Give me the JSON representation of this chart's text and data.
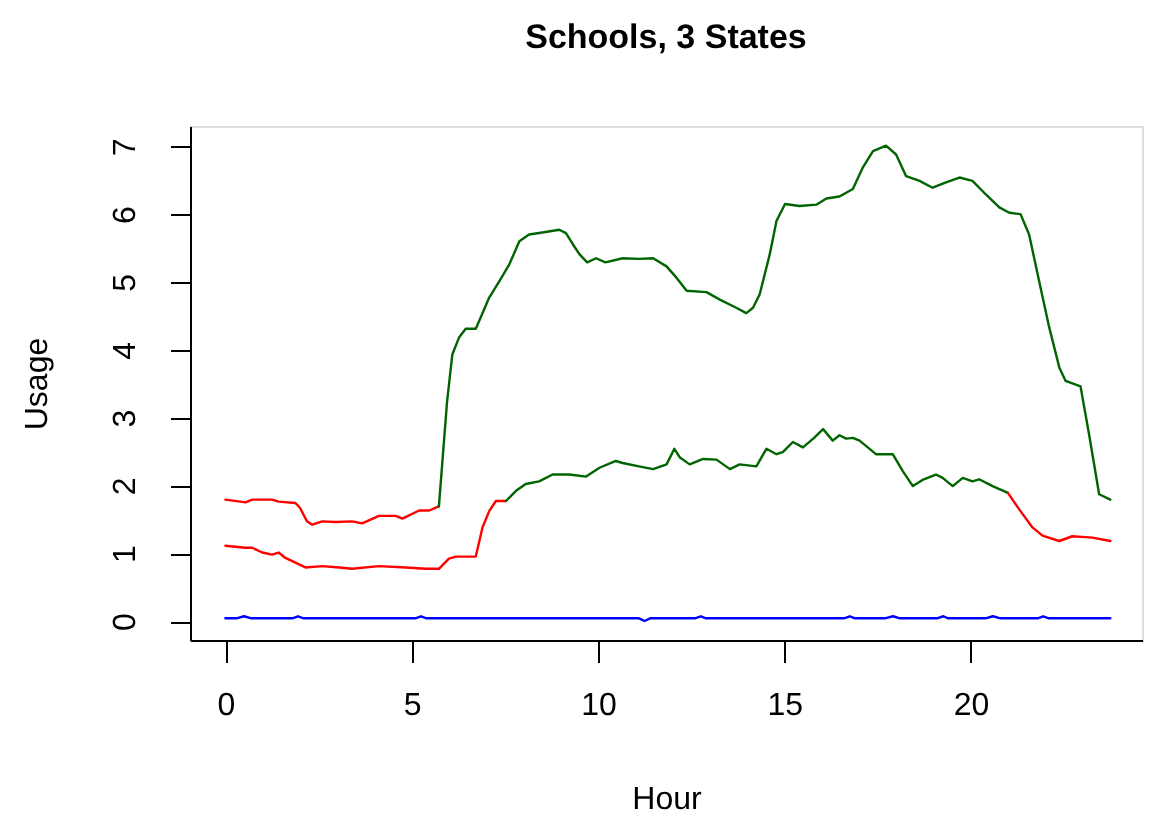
{
  "chart_data": {
    "type": "line",
    "title": "Schools, 3 States",
    "xlabel": "Hour",
    "ylabel": "Usage",
    "xlim": [
      -0.95,
      24.6
    ],
    "ylim": [
      -0.28,
      7.3
    ],
    "xticks": [
      0,
      5,
      10,
      15,
      20
    ],
    "yticks": [
      0,
      1,
      2,
      3,
      4,
      5,
      6,
      7
    ],
    "grid": false,
    "series": [
      {
        "color": "#ff0000",
        "x": [
          0,
          0.54,
          0.72,
          1.25,
          1.43,
          1.88,
          2.0,
          2.19,
          2.33,
          2.6,
          2.96,
          3.4,
          3.67,
          4.12,
          4.57,
          4.75,
          5.2,
          5.47,
          5.73
        ],
        "values": [
          1.79,
          1.75,
          1.79,
          1.79,
          1.76,
          1.74,
          1.67,
          1.47,
          1.42,
          1.47,
          1.46,
          1.47,
          1.44,
          1.55,
          1.55,
          1.51,
          1.63,
          1.63,
          1.69
        ]
      },
      {
        "color": "#006400",
        "x": [
          5.73,
          5.77,
          5.88,
          5.95,
          6.09,
          6.27,
          6.45,
          6.72,
          6.9,
          7.08,
          7.35,
          7.62,
          7.89,
          8.15,
          8.51,
          8.96,
          9.14,
          9.32,
          9.5,
          9.71,
          9.95,
          10.2,
          10.66,
          11.1,
          11.48,
          11.84,
          12.11,
          12.38,
          12.91,
          13.27,
          13.71,
          13.98,
          14.16,
          14.34,
          14.61,
          14.79,
          15.02,
          15.41,
          15.86,
          16.13,
          16.48,
          16.84,
          17.11,
          17.38,
          17.73,
          18.0,
          18.27,
          18.63,
          18.98,
          19.34,
          19.7,
          20.05,
          20.41,
          20.77,
          21.04,
          21.34,
          21.57,
          21.84,
          22.11,
          22.38,
          22.55,
          22.95,
          23.18,
          23.45,
          23.75
        ],
        "values": [
          1.69,
          1.97,
          2.75,
          3.24,
          3.93,
          4.18,
          4.31,
          4.31,
          4.54,
          4.77,
          5.01,
          5.26,
          5.6,
          5.7,
          5.73,
          5.77,
          5.72,
          5.56,
          5.41,
          5.29,
          5.35,
          5.29,
          5.35,
          5.34,
          5.35,
          5.23,
          5.06,
          4.87,
          4.85,
          4.74,
          4.62,
          4.54,
          4.62,
          4.82,
          5.41,
          5.9,
          6.15,
          6.12,
          6.14,
          6.23,
          6.26,
          6.37,
          6.69,
          6.93,
          7.01,
          6.88,
          6.56,
          6.49,
          6.39,
          6.47,
          6.54,
          6.49,
          6.29,
          6.1,
          6.02,
          6.0,
          5.7,
          5.01,
          4.33,
          3.74,
          3.54,
          3.46,
          2.75,
          1.87,
          1.79
        ]
      },
      {
        "color": "#ff0000",
        "x": [
          0,
          0.54,
          0.72,
          0.99,
          1.25,
          1.43,
          1.61,
          1.88,
          2.15,
          2.6,
          3.05,
          3.4,
          4.12,
          4.84,
          5.38,
          5.73,
          6.0,
          6.18,
          6.72,
          6.9,
          7.08,
          7.26,
          7.53
        ],
        "values": [
          1.11,
          1.08,
          1.08,
          1.01,
          0.98,
          1.01,
          0.93,
          0.86,
          0.79,
          0.81,
          0.79,
          0.77,
          0.81,
          0.79,
          0.77,
          0.77,
          0.92,
          0.95,
          0.95,
          1.38,
          1.62,
          1.77,
          1.77
        ]
      },
      {
        "color": "#006400",
        "x": [
          7.53,
          7.8,
          8.06,
          8.42,
          8.78,
          9.23,
          9.68,
          10.04,
          10.48,
          10.66,
          11.1,
          11.48,
          11.84,
          12.05,
          12.2,
          12.46,
          12.82,
          13.18,
          13.54,
          13.8,
          14.25,
          14.52,
          14.79,
          14.96,
          15.23,
          15.5,
          15.8,
          16.04,
          16.3,
          16.48,
          16.66,
          16.84,
          17.02,
          17.46,
          17.91,
          18.18,
          18.45,
          18.71,
          19.07,
          19.25,
          19.52,
          19.79,
          20.05,
          20.23,
          20.59,
          21.0
        ],
        "values": [
          1.77,
          1.92,
          2.02,
          2.06,
          2.16,
          2.16,
          2.13,
          2.26,
          2.36,
          2.33,
          2.28,
          2.24,
          2.31,
          2.54,
          2.41,
          2.31,
          2.39,
          2.38,
          2.24,
          2.31,
          2.28,
          2.54,
          2.46,
          2.49,
          2.64,
          2.56,
          2.7,
          2.83,
          2.66,
          2.74,
          2.69,
          2.7,
          2.66,
          2.46,
          2.46,
          2.21,
          1.99,
          2.08,
          2.16,
          2.11,
          1.99,
          2.11,
          2.06,
          2.09,
          1.99,
          1.89
        ]
      },
      {
        "color": "#ff0000",
        "x": [
          21.0,
          21.3,
          21.66,
          21.93,
          22.38,
          22.73,
          23.27,
          23.75
        ],
        "values": [
          1.89,
          1.65,
          1.38,
          1.26,
          1.18,
          1.25,
          1.23,
          1.18
        ]
      },
      {
        "color": "#0000ff",
        "x": [
          0,
          0.3,
          0.5,
          0.7,
          1.8,
          1.95,
          2.1,
          5.1,
          5.25,
          5.4,
          11.1,
          11.25,
          11.4,
          12.6,
          12.76,
          12.9,
          16.6,
          16.76,
          16.9,
          17.7,
          17.92,
          18.1,
          19.1,
          19.27,
          19.4,
          20.4,
          20.6,
          20.8,
          21.8,
          21.95,
          22.1,
          23.75
        ],
        "values": [
          0.04,
          0.04,
          0.07,
          0.04,
          0.04,
          0.07,
          0.04,
          0.04,
          0.07,
          0.04,
          0.04,
          0.0,
          0.04,
          0.04,
          0.07,
          0.04,
          0.04,
          0.07,
          0.04,
          0.04,
          0.07,
          0.04,
          0.04,
          0.07,
          0.04,
          0.04,
          0.07,
          0.04,
          0.04,
          0.07,
          0.04,
          0.04
        ]
      }
    ]
  }
}
